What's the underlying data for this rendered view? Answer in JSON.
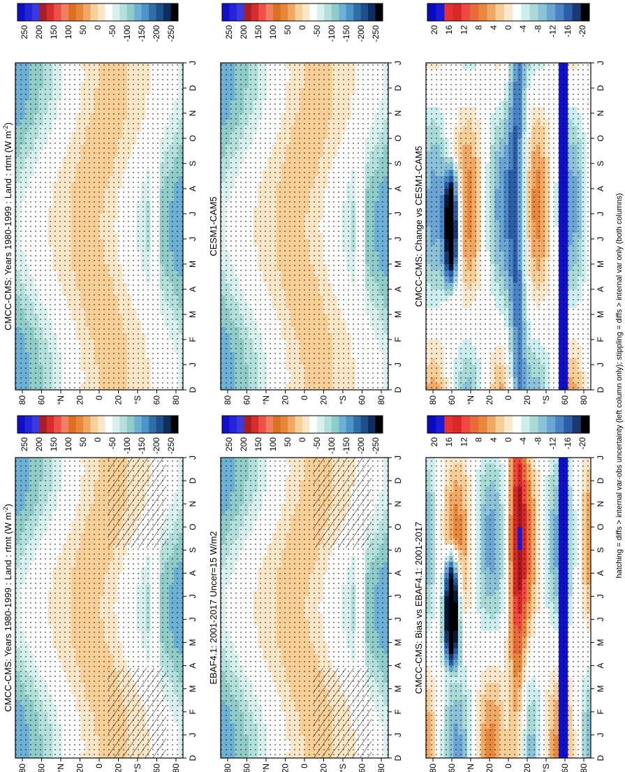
{
  "figure": {
    "footnote": "hatching = diffs > internal var-obs uncertainty (left column only); stippling = diffs > internal var only (both columns)"
  },
  "colors": {
    "abs_scale": [
      "#000000",
      "#0f2d5e",
      "#1e4f8a",
      "#2e6faa",
      "#4b95c8",
      "#6db0d5",
      "#8fcbc8",
      "#b4e0dc",
      "#d8f0ee",
      "#ffffff",
      "#fbe6c8",
      "#f8cf97",
      "#f0a864",
      "#e6873a",
      "#dd7020",
      "#f08060",
      "#f0504a",
      "#d82d2d",
      "#a81e26",
      "#3a3ae0",
      "#2424d8",
      "#1010c8"
    ],
    "diff_scale": [
      "#000000",
      "#1b3870",
      "#2b5ea6",
      "#4a84c4",
      "#6aa5d4",
      "#8cc2d8",
      "#a9dad6",
      "#cceeee",
      "#ffffff",
      "#fbe8cc",
      "#f6cf98",
      "#f0a864",
      "#e8883c",
      "#e86b3c",
      "#f04a40",
      "#d82828",
      "#a81820",
      "#e83030",
      "#1a1ad8",
      "#0a0ac0"
    ]
  },
  "chart_data": [
    {
      "type": "heatmap",
      "id": "panel-1",
      "title": "CMCC-CMS: Years 1980-1999 : Land : rtmt (W m",
      "title_sup": "-2",
      "title_end": ")",
      "x": [
        "D",
        "J",
        "F",
        "M",
        "A",
        "M",
        "J",
        "J",
        "A",
        "S",
        "O",
        "N",
        "D",
        "J"
      ],
      "y_ticks": [
        "80",
        "60",
        "°N",
        "20",
        "0",
        "20",
        "°S",
        "60",
        "80"
      ],
      "colorbar_labels": [
        "250",
        "200",
        "150",
        "100",
        "50",
        "0",
        "-50",
        "-100",
        "-150",
        "-200",
        "-250"
      ],
      "hatching": true,
      "stippling": true
    },
    {
      "type": "heatmap",
      "id": "panel-2",
      "title": "CMCC-CMS: Years 1980-1999 : Land : rtmt (W m",
      "title_sup": "-2",
      "title_end": ")",
      "x": [
        "D",
        "J",
        "F",
        "M",
        "A",
        "M",
        "J",
        "J",
        "A",
        "S",
        "O",
        "N",
        "D",
        "J"
      ],
      "y_ticks": [
        "80",
        "60",
        "°N",
        "20",
        "0",
        "20",
        "°S",
        "60",
        "80"
      ],
      "colorbar_labels": [
        "250",
        "200",
        "150",
        "100",
        "50",
        "0",
        "-50",
        "-100",
        "-150",
        "-200",
        "-250"
      ],
      "hatching": false,
      "stippling": true
    },
    {
      "type": "heatmap",
      "id": "panel-3",
      "title": "EBAF4.1: 2001-2017 Uncer=15 W/m2",
      "x": [
        "D",
        "J",
        "F",
        "M",
        "A",
        "M",
        "J",
        "J",
        "A",
        "S",
        "O",
        "N",
        "D",
        "J"
      ],
      "y_ticks": [
        "80",
        "60",
        "°N",
        "20",
        "0",
        "20",
        "°S",
        "60",
        "80"
      ],
      "colorbar_labels": [
        "250",
        "200",
        "150",
        "100",
        "50",
        "0",
        "-50",
        "-100",
        "-150",
        "-200",
        "-250"
      ],
      "hatching": true,
      "stippling": true
    },
    {
      "type": "heatmap",
      "id": "panel-4",
      "title": "CESM1-CAM5",
      "x": [
        "D",
        "J",
        "F",
        "M",
        "A",
        "M",
        "J",
        "J",
        "A",
        "S",
        "O",
        "N",
        "D",
        "J"
      ],
      "y_ticks": [
        "80",
        "60",
        "°N",
        "20",
        "0",
        "20",
        "°S",
        "60",
        "80"
      ],
      "colorbar_labels": [
        "250",
        "200",
        "150",
        "100",
        "50",
        "0",
        "-50",
        "-100",
        "-150",
        "-200",
        "-250"
      ],
      "hatching": false,
      "stippling": true
    },
    {
      "type": "heatmap",
      "id": "panel-5",
      "title": "CMCC-CMS: Bias vs EBAF4.1: 2001-2017",
      "x": [
        "D",
        "J",
        "F",
        "M",
        "A",
        "M",
        "J",
        "J",
        "A",
        "S",
        "O",
        "N",
        "D",
        "J"
      ],
      "y_ticks": [
        "80",
        "60",
        "°N",
        "20",
        "0",
        "20",
        "°S",
        "60",
        "80"
      ],
      "colorbar_labels": [
        "20",
        "16",
        "12",
        "8",
        "4",
        "0",
        "-4",
        "-8",
        "-12",
        "-16",
        "-20"
      ],
      "hatching": false,
      "stippling": true
    },
    {
      "type": "heatmap",
      "id": "panel-6",
      "title": "CMCC-CMS: Change vs CESM1-CAM5",
      "x": [
        "D",
        "J",
        "F",
        "M",
        "A",
        "M",
        "J",
        "J",
        "A",
        "S",
        "O",
        "N",
        "D",
        "J"
      ],
      "y_ticks": [
        "80",
        "60",
        "°N",
        "20",
        "0",
        "20",
        "°S",
        "60",
        "80"
      ],
      "colorbar_labels": [
        "20",
        "16",
        "12",
        "8",
        "4",
        "0",
        "-4",
        "-8",
        "-12",
        "-16",
        "-20"
      ],
      "hatching": false,
      "stippling": true
    }
  ]
}
